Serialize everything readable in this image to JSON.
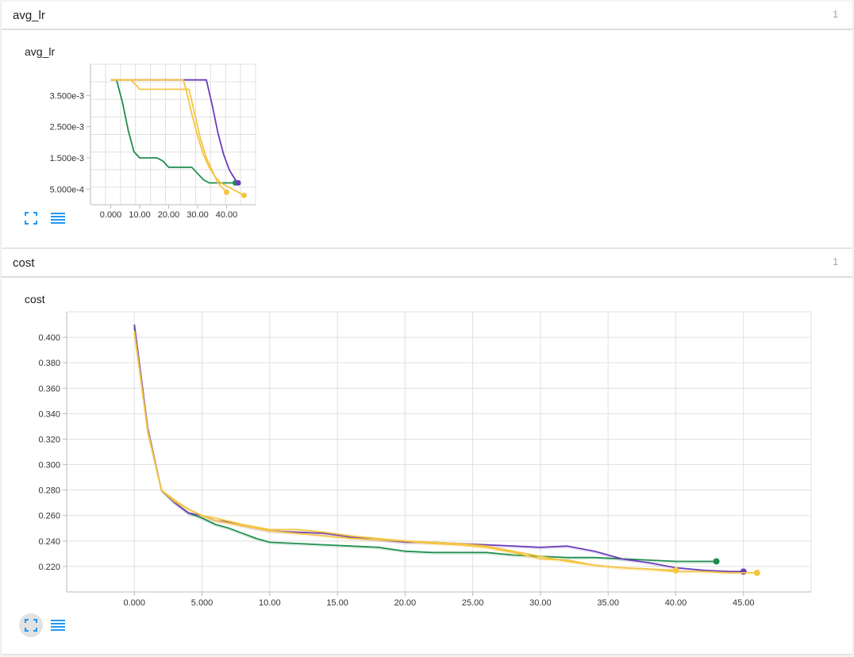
{
  "sections": [
    {
      "title": "avg_lr",
      "count": "1"
    },
    {
      "title": "cost",
      "count": "1"
    }
  ],
  "colors": {
    "green": "#1e8e4e",
    "purple": "#6a3dba",
    "yellow": "#f5c542",
    "grid": "#e0e0e0"
  },
  "icons": {
    "expand": "fullscreen-icon",
    "data": "list-data-icon"
  },
  "chart_data": [
    {
      "type": "line",
      "title": "avg_lr",
      "xlim": [
        -7,
        50
      ],
      "ylim": [
        0,
        0.0045
      ],
      "xticks": [
        "0.000",
        "10.00",
        "20.00",
        "30.00",
        "40.00"
      ],
      "yticks": [
        "3.500e-3",
        "2.500e-3",
        "1.500e-3",
        "5.000e-4"
      ],
      "series": [
        {
          "color": "#1e8e4e",
          "x": [
            0,
            2,
            4,
            6,
            8,
            10,
            12,
            14,
            16,
            18,
            20,
            25,
            28,
            30,
            32,
            34,
            43
          ],
          "y": [
            0.004,
            0.004,
            0.0033,
            0.0024,
            0.0017,
            0.0015,
            0.0015,
            0.0015,
            0.0015,
            0.0014,
            0.0012,
            0.0012,
            0.0012,
            0.001,
            0.0008,
            0.0007,
            0.0007
          ]
        },
        {
          "color": "#6a3dba",
          "x": [
            0,
            33,
            35,
            37,
            39,
            41,
            43,
            44
          ],
          "y": [
            0.004,
            0.004,
            0.0032,
            0.0023,
            0.0016,
            0.0011,
            0.0008,
            0.0007
          ]
        },
        {
          "color": "#f5c542",
          "x": [
            0,
            7,
            9,
            10,
            27,
            29,
            31,
            33,
            35,
            37,
            40
          ],
          "y": [
            0.004,
            0.004,
            0.0038,
            0.0037,
            0.0037,
            0.0029,
            0.0021,
            0.0015,
            0.0011,
            0.0007,
            0.0004
          ]
        },
        {
          "color": "#f5c542",
          "x": [
            0,
            25,
            26,
            28,
            30,
            32,
            34,
            36,
            38,
            40,
            42,
            46
          ],
          "y": [
            0.004,
            0.004,
            0.0037,
            0.0029,
            0.0022,
            0.0016,
            0.0012,
            0.0009,
            0.0007,
            0.0006,
            0.0005,
            0.0003
          ]
        }
      ]
    },
    {
      "type": "line",
      "title": "cost",
      "xlim": [
        -5,
        50
      ],
      "ylim": [
        0.2,
        0.42
      ],
      "xticks": [
        "0.000",
        "5.000",
        "10.00",
        "15.00",
        "20.00",
        "25.00",
        "30.00",
        "35.00",
        "40.00",
        "45.00"
      ],
      "yticks": [
        "0.400",
        "0.380",
        "0.360",
        "0.340",
        "0.320",
        "0.300",
        "0.280",
        "0.260",
        "0.240",
        "0.220"
      ],
      "series": [
        {
          "color": "#1e8e4e",
          "x": [
            0,
            1,
            2,
            3,
            4,
            5,
            6,
            7,
            8,
            9,
            10,
            12,
            14,
            16,
            18,
            20,
            22,
            24,
            26,
            28,
            30,
            32,
            34,
            36,
            38,
            40,
            42,
            43
          ],
          "y": [
            0.408,
            0.326,
            0.28,
            0.27,
            0.262,
            0.258,
            0.253,
            0.25,
            0.246,
            0.242,
            0.239,
            0.238,
            0.237,
            0.236,
            0.235,
            0.232,
            0.231,
            0.231,
            0.231,
            0.229,
            0.228,
            0.227,
            0.227,
            0.226,
            0.225,
            0.224,
            0.224,
            0.224
          ]
        },
        {
          "color": "#6a3dba",
          "x": [
            0,
            1,
            2,
            3,
            4,
            5,
            6,
            7,
            8,
            10,
            12,
            14,
            16,
            18,
            20,
            22,
            24,
            26,
            28,
            30,
            32,
            34,
            36,
            38,
            40,
            42,
            44,
            45
          ],
          "y": [
            0.41,
            0.328,
            0.28,
            0.27,
            0.262,
            0.26,
            0.256,
            0.255,
            0.252,
            0.248,
            0.247,
            0.246,
            0.243,
            0.241,
            0.239,
            0.239,
            0.238,
            0.237,
            0.236,
            0.235,
            0.236,
            0.232,
            0.226,
            0.223,
            0.219,
            0.217,
            0.216,
            0.216
          ]
        },
        {
          "color": "#f5c542",
          "x": [
            0,
            1,
            2,
            3,
            4,
            5,
            6,
            8,
            10,
            12,
            14,
            16,
            18,
            20,
            22,
            24,
            26,
            28,
            30,
            32,
            34,
            36,
            38,
            40
          ],
          "y": [
            0.404,
            0.325,
            0.28,
            0.272,
            0.265,
            0.26,
            0.258,
            0.253,
            0.249,
            0.249,
            0.247,
            0.244,
            0.242,
            0.24,
            0.239,
            0.238,
            0.236,
            0.232,
            0.228,
            0.224,
            0.221,
            0.219,
            0.218,
            0.217
          ]
        },
        {
          "color": "#f5c542",
          "x": [
            0,
            1,
            2,
            3,
            4,
            5,
            6,
            8,
            10,
            12,
            14,
            16,
            18,
            20,
            22,
            24,
            26,
            28,
            30,
            32,
            34,
            36,
            38,
            40,
            42,
            44,
            46
          ],
          "y": [
            0.405,
            0.326,
            0.28,
            0.271,
            0.265,
            0.26,
            0.256,
            0.252,
            0.248,
            0.246,
            0.244,
            0.242,
            0.241,
            0.24,
            0.238,
            0.237,
            0.235,
            0.231,
            0.226,
            0.225,
            0.221,
            0.219,
            0.218,
            0.216,
            0.216,
            0.215,
            0.215
          ]
        }
      ]
    }
  ]
}
